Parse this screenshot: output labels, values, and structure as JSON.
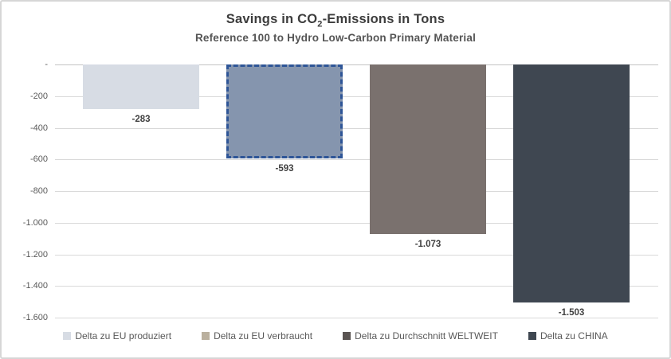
{
  "title": {
    "pre": "Savings in CO",
    "sub": "2",
    "post": "-Emissions in Tons",
    "subtitle": "Reference 100 to Hydro Low-Carbon Primary Material"
  },
  "chart_data": {
    "type": "bar",
    "title": "Savings in CO2-Emissions in Tons",
    "subtitle": "Reference 100 to Hydro Low-Carbon Primary Material",
    "categories": [
      "Delta zu EU produziert",
      "Delta zu EU verbraucht",
      "Delta zu Durchschnitt WELTWEIT",
      "Delta zu CHINA"
    ],
    "values": [
      -283,
      -593,
      -1073,
      -1503
    ],
    "data_labels": [
      "-283",
      "-593",
      "-1.073",
      "-1.503"
    ],
    "bar_colors": [
      "#d7dce4",
      "#8595ae",
      "#7a716e",
      "#3f4751"
    ],
    "highlighted_bar": {
      "index": 1,
      "border_color": "#2e5597",
      "border_style": "dashed",
      "border_width": 3
    },
    "y_ticks": [
      {
        "value": 0,
        "label": "-"
      },
      {
        "value": -200,
        "label": "-200"
      },
      {
        "value": -400,
        "label": "-400"
      },
      {
        "value": -600,
        "label": "-600"
      },
      {
        "value": -800,
        "label": "-800"
      },
      {
        "value": -1000,
        "label": "-1.000"
      },
      {
        "value": -1200,
        "label": "-1.200"
      },
      {
        "value": -1400,
        "label": "-1.400"
      },
      {
        "value": -1600,
        "label": "-1.600"
      }
    ],
    "ylim": [
      -1600,
      0
    ],
    "xlabel": "",
    "ylabel": "",
    "grid": true,
    "gridline_color": "#d9d9d9",
    "legend_position": "bottom",
    "legend": [
      {
        "label": "Delta zu EU produziert",
        "swatch_color": "#d7dce4"
      },
      {
        "label": "Delta zu EU verbraucht",
        "swatch_color": "#bab09e"
      },
      {
        "label": "Delta zu Durchschnitt WELTWEIT",
        "swatch_color": "#5a5452"
      },
      {
        "label": "Delta zu CHINA",
        "swatch_color": "#3f4751"
      }
    ]
  }
}
